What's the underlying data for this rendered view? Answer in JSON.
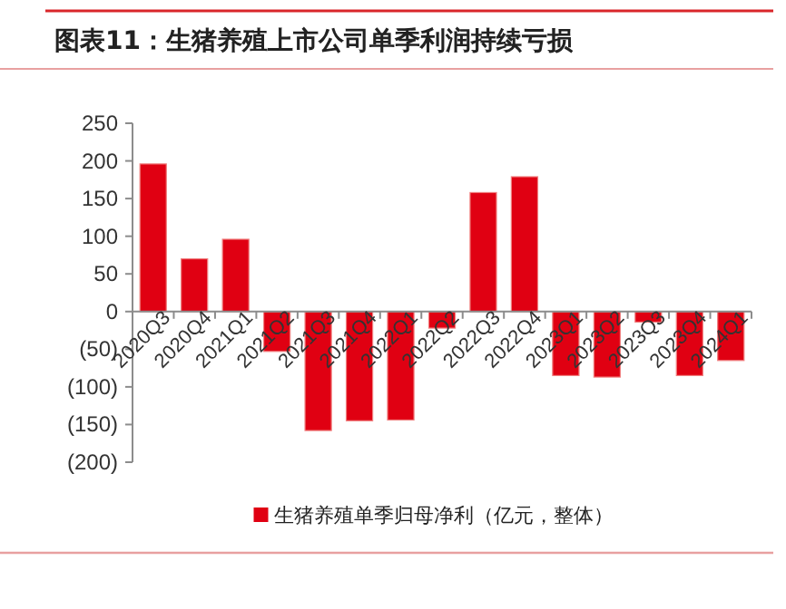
{
  "chart_data": {
    "type": "bar",
    "title": "图表11：生猪养殖上市公司单季利润持续亏损",
    "categories": [
      "2020Q3",
      "2020Q4",
      "2021Q1",
      "2021Q2",
      "2021Q3",
      "2021Q4",
      "2022Q1",
      "2022Q2",
      "2022Q3",
      "2022Q4",
      "2023Q1",
      "2023Q2",
      "2023Q3",
      "2023Q4",
      "2024Q1"
    ],
    "series": [
      {
        "name": "生猪养殖单季归母净利（亿元，整体）",
        "color": "#e00012",
        "values": [
          196,
          70,
          96,
          -53,
          -158,
          -145,
          -144,
          -22,
          158,
          179,
          -85,
          -87,
          -14,
          -85,
          -65
        ]
      }
    ],
    "ylim": [
      -200,
      250
    ],
    "yticks": [
      {
        "value": -200,
        "label": "(200)"
      },
      {
        "value": -150,
        "label": "(150)"
      },
      {
        "value": -100,
        "label": "(100)"
      },
      {
        "value": -50,
        "label": "(50)"
      },
      0,
      50,
      100,
      150,
      200,
      250
    ],
    "legend": "bottom"
  }
}
